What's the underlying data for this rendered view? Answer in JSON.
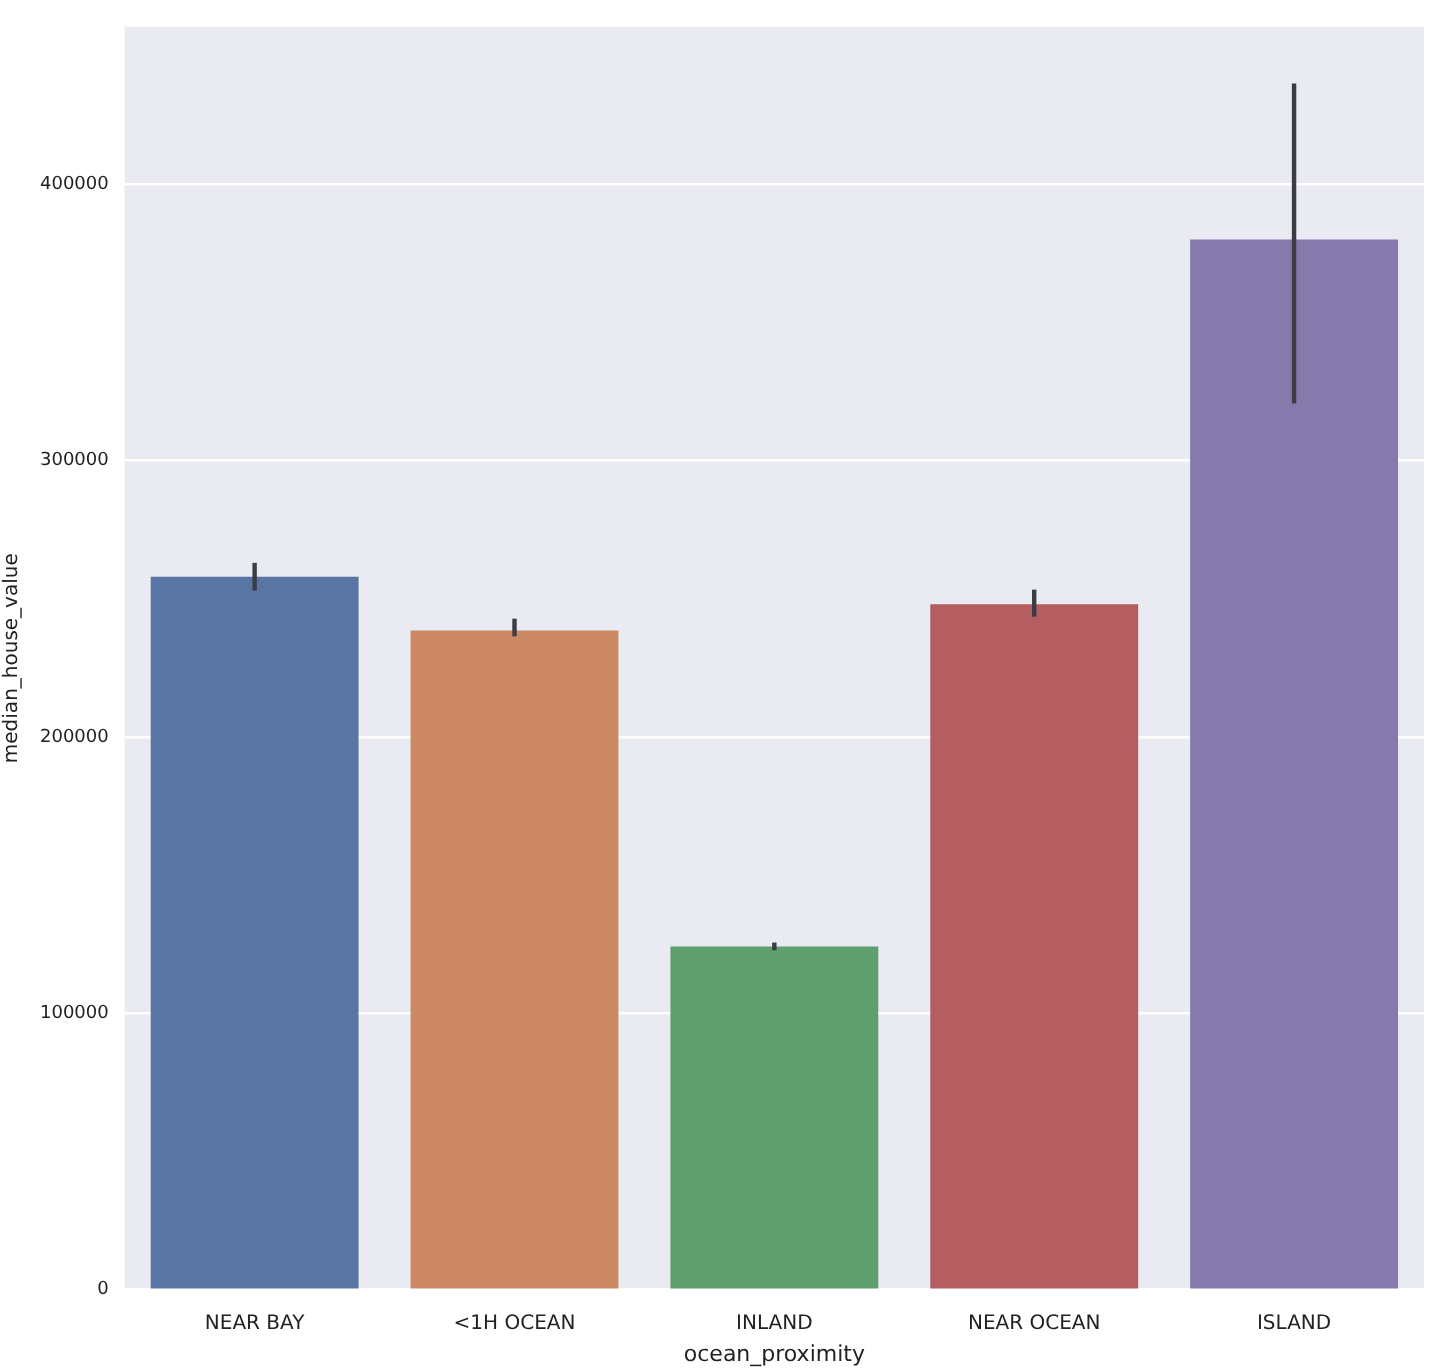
{
  "chart_data": {
    "type": "bar",
    "xlabel": "ocean_proximity",
    "ylabel": "median_house_value",
    "categories": [
      "NEAR BAY",
      "<1H OCEAN",
      "INLAND",
      "NEAR OCEAN",
      "ISLAND"
    ],
    "values": [
      258000,
      238500,
      124200,
      248000,
      380000
    ],
    "colors": [
      "#5875a4",
      "#cc8963",
      "#5f9e6e",
      "#b55d60",
      "#857aab"
    ],
    "errors": [
      [
        253000,
        263000
      ],
      [
        236400,
        242800
      ],
      [
        122800,
        125600
      ],
      [
        243500,
        253300
      ],
      [
        320700,
        436500
      ]
    ],
    "ylim": [
      0,
      457000
    ],
    "yticks": [
      0,
      100000,
      200000,
      300000,
      400000
    ],
    "grid": "y",
    "legend": false
  }
}
